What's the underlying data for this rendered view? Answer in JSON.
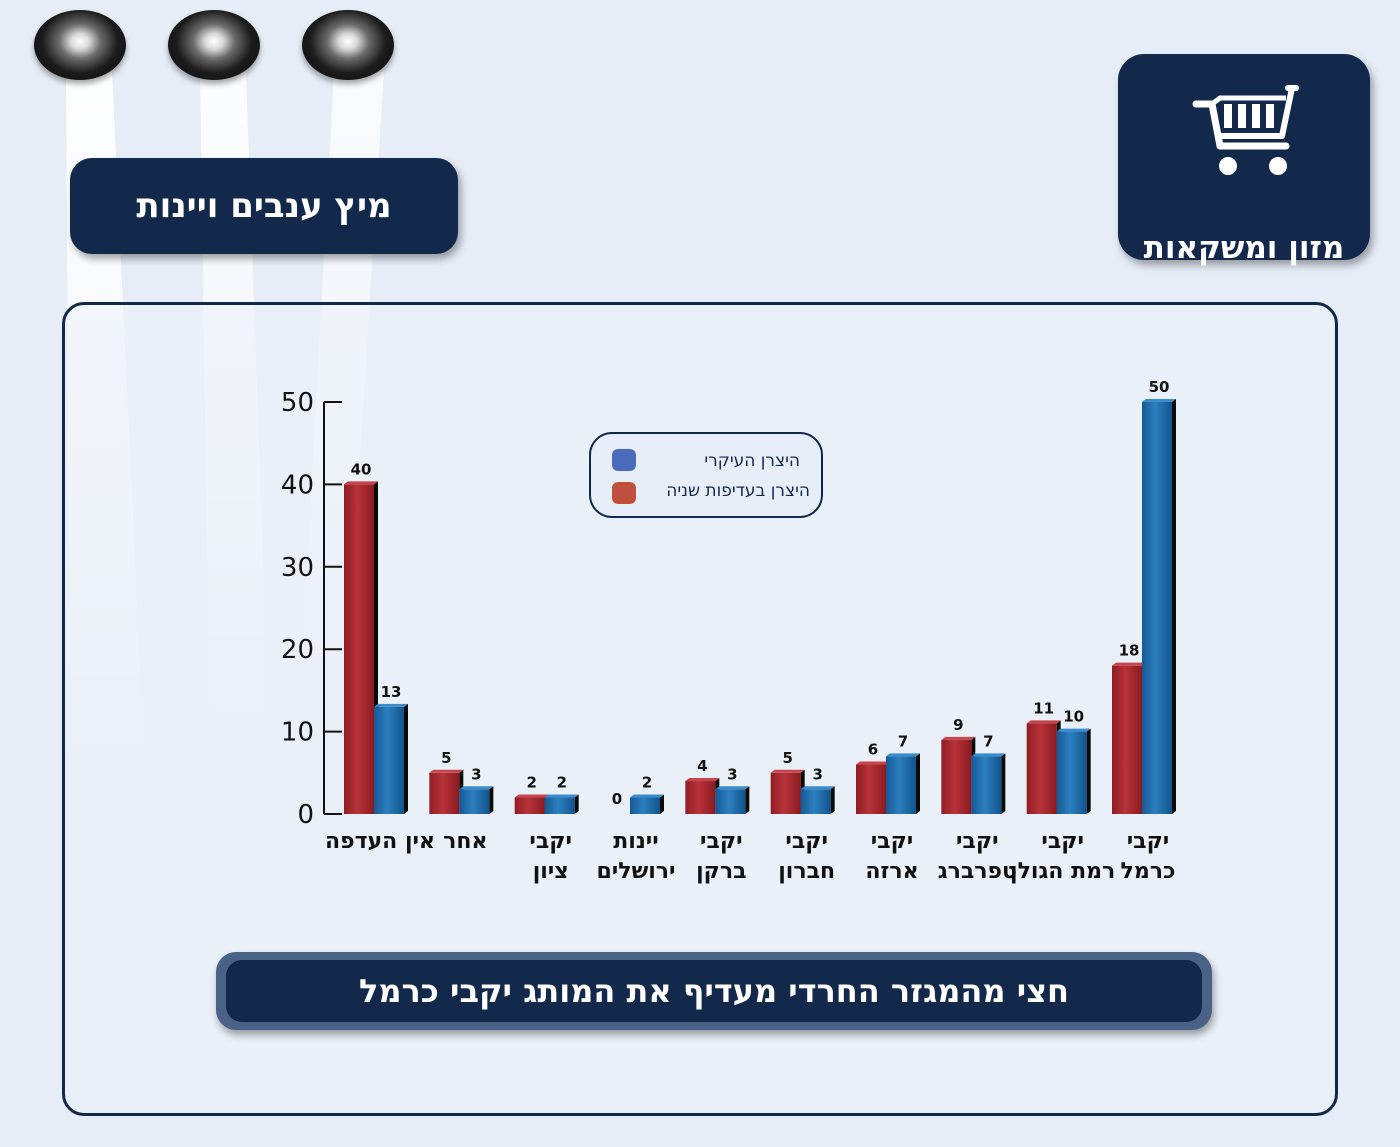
{
  "category_title": "מיץ ענבים ויינות",
  "section_badge": {
    "label": "מזון ומשקאות",
    "icon": "shopping-cart-icon"
  },
  "headline": "חצי מהמגזר החרדי מעדיף את המותג יקבי כרמל",
  "colors": {
    "primary": "#1a68aa",
    "secondary": "#a3242b",
    "navy": "#13294b"
  },
  "chart_data": {
    "type": "bar",
    "categories": [
      [
        "אין העדפה"
      ],
      [
        "אחר"
      ],
      [
        "יקבי",
        "ציון"
      ],
      [
        "יינות",
        "ירושלים"
      ],
      [
        "יקבי",
        "ברקן"
      ],
      [
        "יקבי",
        "חברון"
      ],
      [
        "יקבי",
        "ארזה"
      ],
      [
        "יקבי",
        "טפרברג"
      ],
      [
        "יקבי",
        "רמת הגולן"
      ],
      [
        "יקבי",
        "כרמל"
      ]
    ],
    "series": [
      {
        "name": "היצרן בעדיפות שניה",
        "color": "#a3242b",
        "values": [
          40,
          5,
          2,
          0,
          4,
          5,
          6,
          9,
          11,
          18
        ]
      },
      {
        "name": "היצרן העיקרי",
        "color": "#1a68aa",
        "values": [
          13,
          3,
          2,
          2,
          3,
          3,
          7,
          7,
          10,
          50
        ]
      }
    ],
    "legend_order": [
      "היצרן העיקרי",
      "היצרן בעדיפות שניה"
    ],
    "legend_position": "top-center",
    "ylim": [
      0,
      50
    ],
    "yticks": [
      0,
      10,
      20,
      30,
      40,
      50
    ],
    "grid": false
  }
}
